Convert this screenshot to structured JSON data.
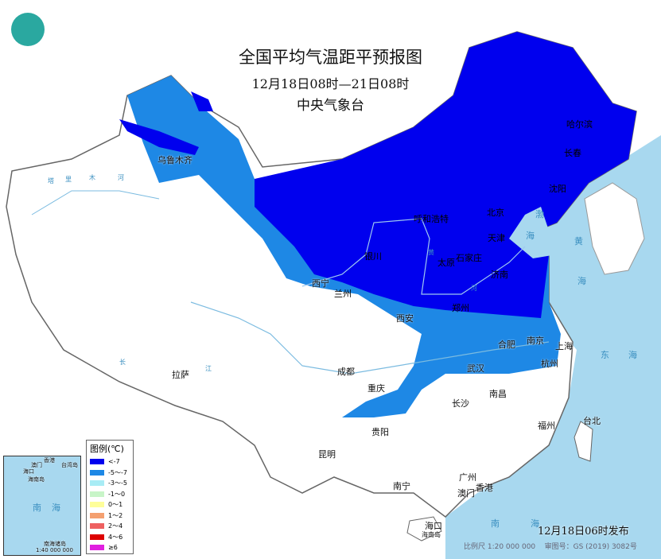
{
  "header": {
    "title": "全国平均气温距平预报图",
    "period": "12月18日08时—21日08时",
    "agency": "中央气象台",
    "logo": "中央气象台徽标"
  },
  "legend": {
    "title": "图例(℃)",
    "items": [
      {
        "label": "<-7",
        "color": "#0000ee"
      },
      {
        "label": "-5～-7",
        "color": "#1e88e5"
      },
      {
        "label": "-3～-5",
        "color": "#a8ecf5"
      },
      {
        "label": "-1～0",
        "color": "#c8f5c8"
      },
      {
        "label": "0～1",
        "color": "#fefe9a"
      },
      {
        "label": "1～2",
        "color": "#f4a070"
      },
      {
        "label": "2～4",
        "color": "#ee6060"
      },
      {
        "label": "4～6",
        "color": "#dd0000"
      },
      {
        "label": "≥6",
        "color": "#e020e0"
      }
    ]
  },
  "cities": [
    "乌鲁木齐",
    "哈尔滨",
    "长春",
    "沈阳",
    "呼和浩特",
    "北京",
    "天津",
    "石家庄",
    "太原",
    "济南",
    "银川",
    "西宁",
    "兰州",
    "郑州",
    "西安",
    "合肥",
    "南京",
    "上海",
    "杭州",
    "武汉",
    "南昌",
    "长沙",
    "成都",
    "重庆",
    "贵阳",
    "昆明",
    "拉萨",
    "南宁",
    "广州",
    "香港",
    "澳门",
    "福州",
    "台北",
    "海口",
    "海南岛"
  ],
  "seas": [
    "渤",
    "海",
    "黄",
    "海",
    "东",
    "海",
    "南",
    "海"
  ],
  "rivers": [
    "塔",
    "里",
    "木",
    "河",
    "黄",
    "河",
    "长",
    "江"
  ],
  "inset": {
    "labels": [
      "澳门",
      "香港",
      "台湾岛",
      "海口",
      "海南岛",
      "南",
      "海",
      "南海诸岛"
    ],
    "scale": "1:40 000 000"
  },
  "issued": "12月18日06时发布",
  "footer": {
    "scale": "比例尺 1:20 000 000",
    "approval": "审图号：GS (2019) 3082号"
  }
}
